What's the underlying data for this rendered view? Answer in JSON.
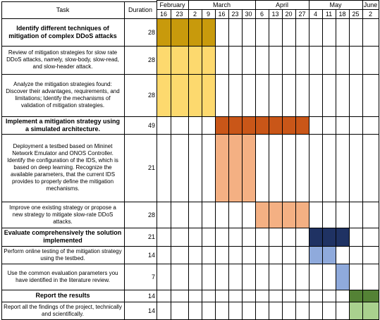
{
  "header": {
    "task_label": "Task",
    "duration_label": "Duration",
    "months": [
      "February",
      "March",
      "April",
      "May",
      "June"
    ],
    "weeks": [
      "16",
      "23",
      "2",
      "9",
      "16",
      "23",
      "30",
      "6",
      "13",
      "20",
      "27",
      "4",
      "11",
      "18",
      "25",
      "2"
    ]
  },
  "tasks": [
    {
      "text": "Identify different techniques of mitigation of complex DDoS attacks",
      "duration": "28",
      "bold": true
    },
    {
      "text": "Review of mitigation strategies for slow rate DDoS attacks, namely, slow-body, slow-read, and slow-header attack.",
      "duration": "28",
      "bold": false
    },
    {
      "text": "Analyze the mitigation strategies found: Discover their advantages, requirements, and limitations; Identify the mechanisms of validation of mitigation strategies.",
      "duration": "28",
      "bold": false
    },
    {
      "text": "Implement a mitigation strategy using a simulated architecture.",
      "duration": "49",
      "bold": true
    },
    {
      "text": "Deployment a testbed based on Mininet Network Emulator and ONOS Controller. Identify the configuration of the IDS, which is based on deep learning. Recognize the available parameters, that the current IDS provides to properly define the mitigation mechanisms.",
      "duration": "21",
      "bold": false
    },
    {
      "text": "Improve one existing strategy or propose a new strategy to mitigate slow-rate DDoS attacks.",
      "duration": "28",
      "bold": false
    },
    {
      "text": "Evaluate comprehensively the solution implemented",
      "duration": "21",
      "bold": true
    },
    {
      "text": "Perform online testing of the mitigation strategy using the testbed.",
      "duration": "14",
      "bold": false
    },
    {
      "text": "Use the common evaluation parameters you have identified in the literature review.",
      "duration": "7",
      "bold": false
    },
    {
      "text": "Report the results",
      "duration": "14",
      "bold": true
    },
    {
      "text": "Report all the findings of the project, technically and scientifically.",
      "duration": "14",
      "bold": false
    }
  ],
  "bars": [
    {
      "row": 0,
      "start": 0,
      "end": 4,
      "color": "#C89A0C"
    },
    {
      "row": 1,
      "start": 0,
      "end": 4,
      "color": "#FDD96E"
    },
    {
      "row": 2,
      "start": 0,
      "end": 4,
      "color": "#FDD96E"
    },
    {
      "row": 3,
      "start": 4,
      "end": 11,
      "color": "#C95618"
    },
    {
      "row": 4,
      "start": 4,
      "end": 7,
      "color": "#F4B083"
    },
    {
      "row": 5,
      "start": 7,
      "end": 11,
      "color": "#F4B083"
    },
    {
      "row": 6,
      "start": 11,
      "end": 14,
      "color": "#1F3263"
    },
    {
      "row": 7,
      "start": 11,
      "end": 13,
      "color": "#8FAADC"
    },
    {
      "row": 8,
      "start": 13,
      "end": 14,
      "color": "#8FAADC"
    },
    {
      "row": 9,
      "start": 14,
      "end": 16,
      "color": "#548235"
    },
    {
      "row": 10,
      "start": 14,
      "end": 16,
      "color": "#A9D18E"
    }
  ]
}
